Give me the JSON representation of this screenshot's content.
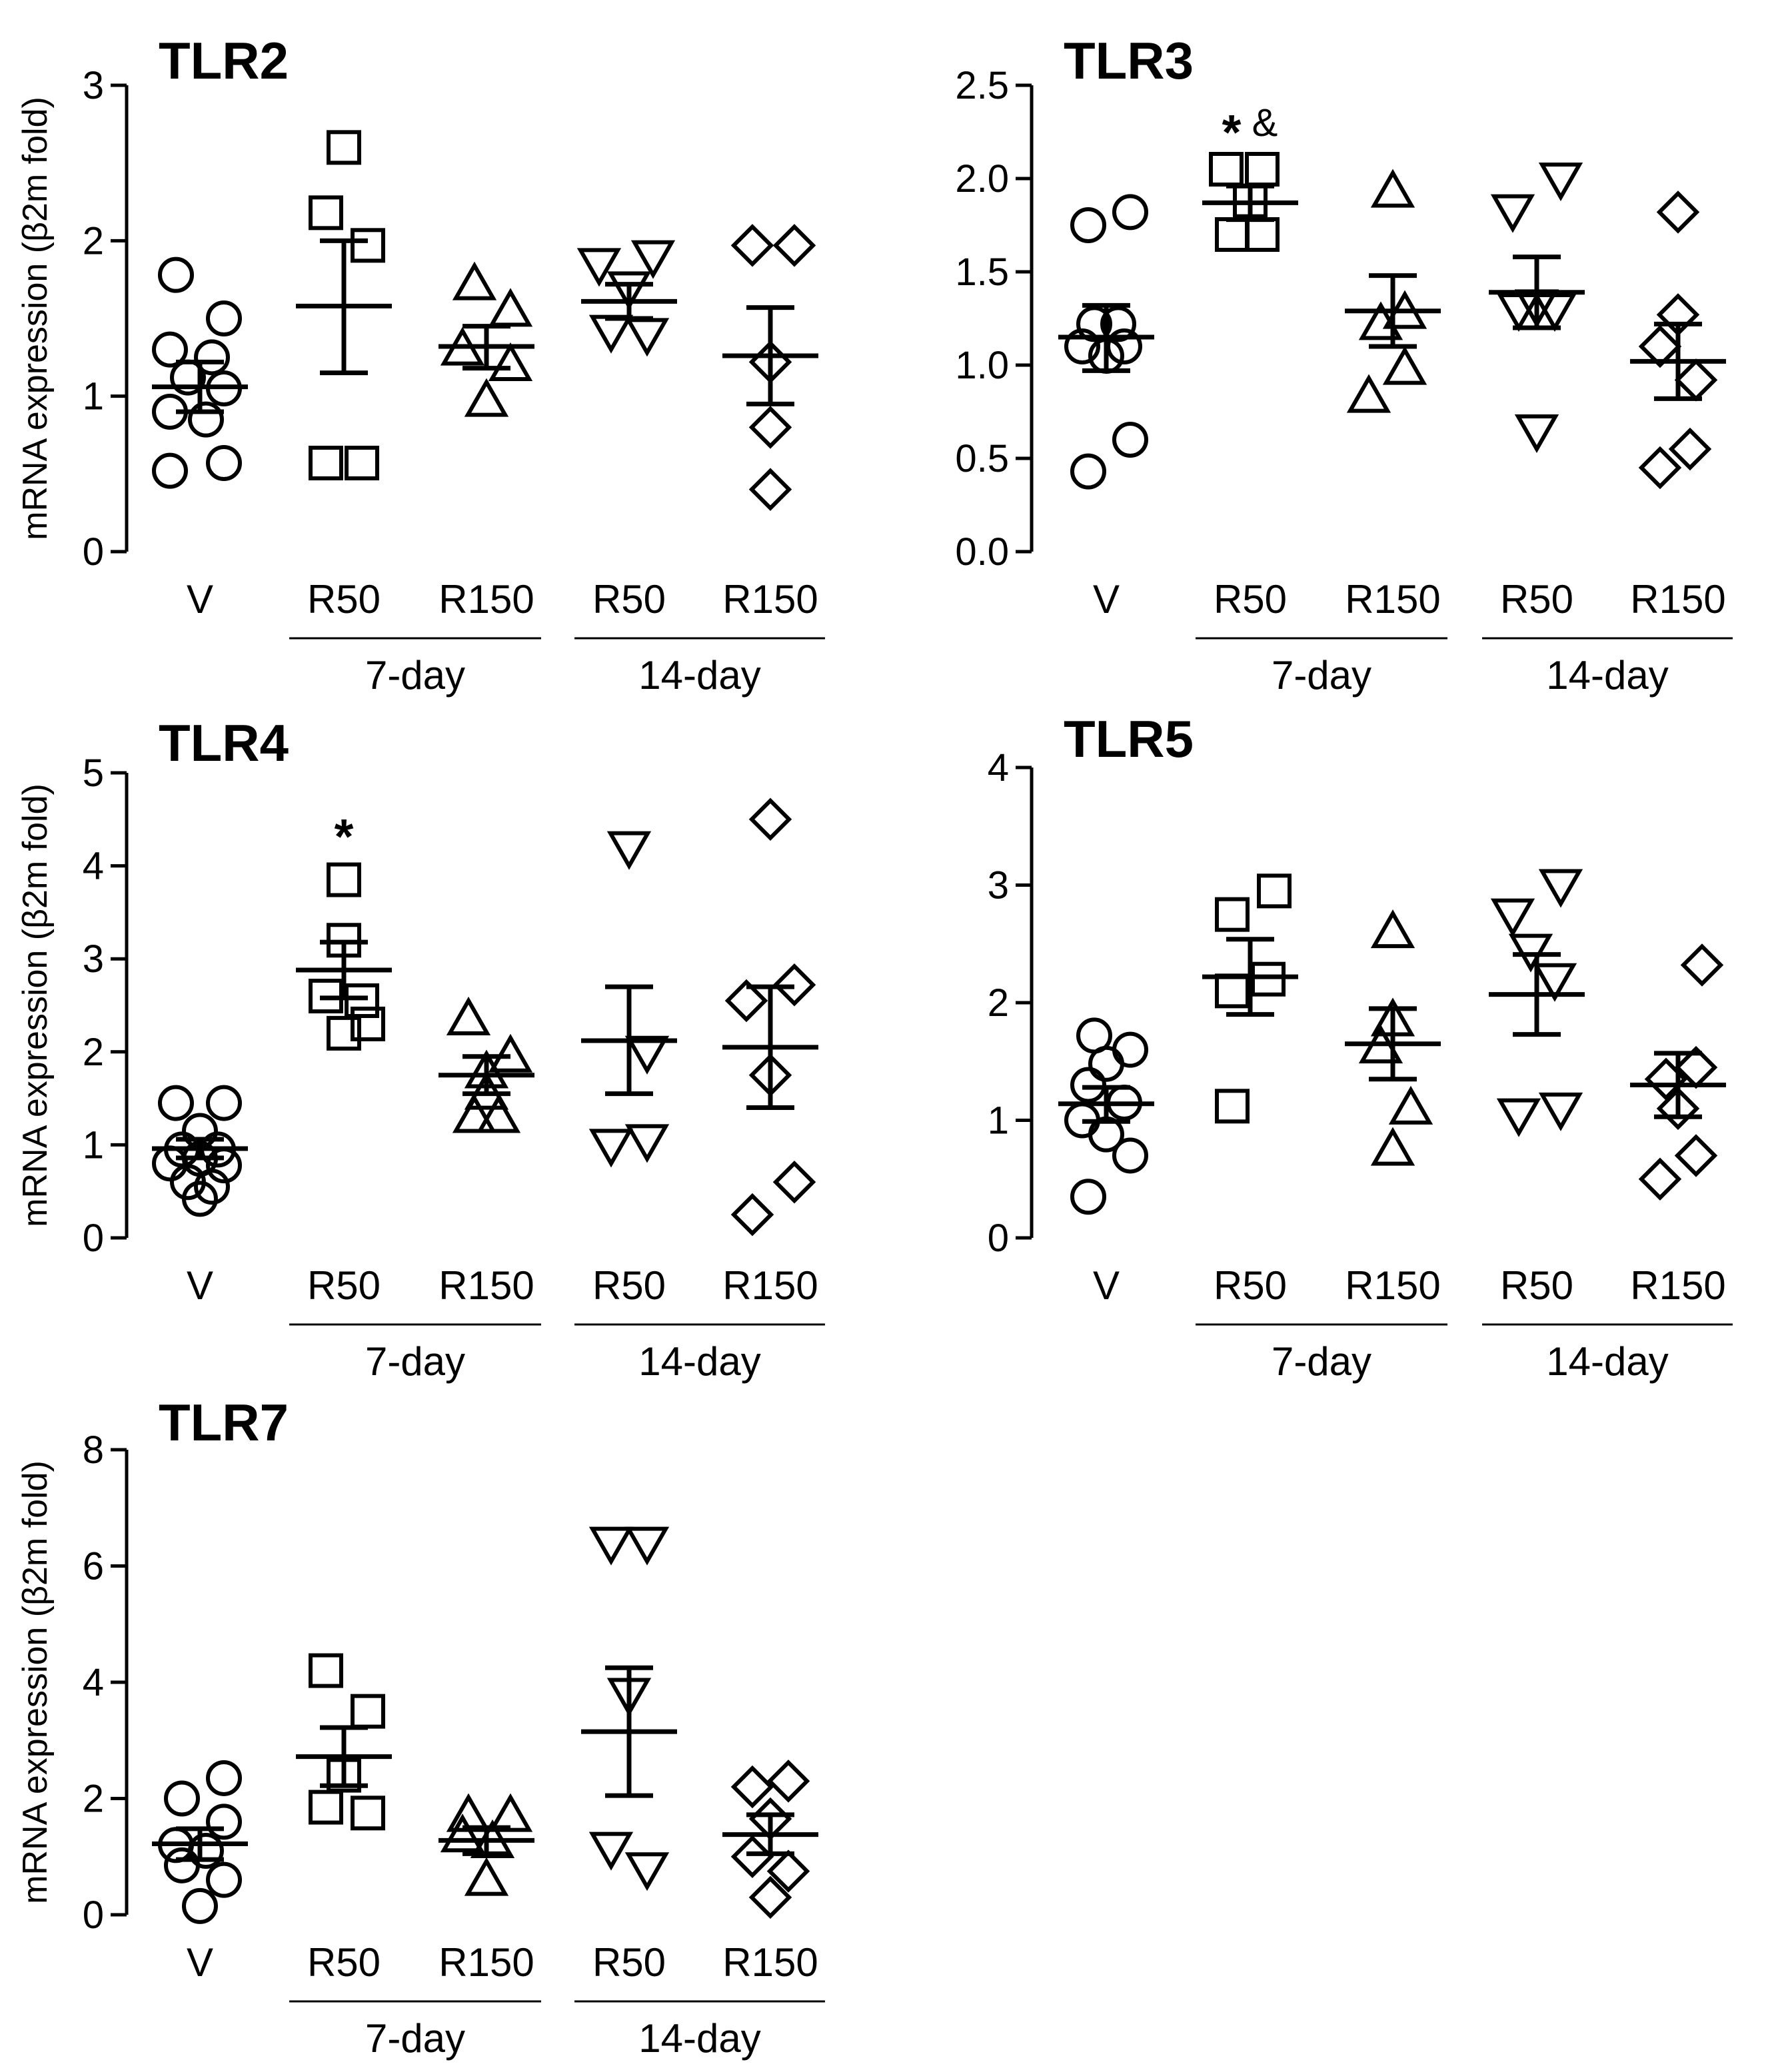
{
  "y_axis_label": "mRNA expression (β2m fold)",
  "chart_data": [
    {
      "type": "scatter",
      "title": "TLR2",
      "ylabel": "mRNA expression (β2m fold)",
      "ylim": [
        0,
        3
      ],
      "yticks": [
        "0",
        "1",
        "2",
        "3"
      ],
      "categories": [
        "V",
        "R50",
        "R150",
        "R50",
        "R150"
      ],
      "groups": [
        {
          "label": "7-day",
          "span": [
            1,
            2
          ]
        },
        {
          "label": "14-day",
          "span": [
            3,
            4
          ]
        }
      ],
      "annotations": [],
      "series": [
        {
          "name": "V",
          "marker": "circle",
          "points": [
            [
              -0.2,
              1.78
            ],
            [
              0.2,
              1.5
            ],
            [
              -0.25,
              1.3
            ],
            [
              0.1,
              1.25
            ],
            [
              -0.1,
              1.12
            ],
            [
              0.2,
              1.05
            ],
            [
              -0.25,
              0.9
            ],
            [
              0.05,
              0.85
            ],
            [
              -0.25,
              0.52
            ],
            [
              0.2,
              0.57
            ]
          ],
          "mean": 1.06,
          "sem_low": 0.9,
          "sem_high": 1.22
        },
        {
          "name": "R50 7-day",
          "marker": "square",
          "points": [
            [
              0.0,
              2.6
            ],
            [
              -0.15,
              2.18
            ],
            [
              0.2,
              1.97
            ],
            [
              -0.15,
              0.57
            ],
            [
              0.15,
              0.57
            ]
          ],
          "mean": 1.58,
          "sem_low": 1.15,
          "sem_high": 2.0
        },
        {
          "name": "R150 7-day",
          "marker": "triangle-up",
          "points": [
            [
              -0.1,
              1.72
            ],
            [
              0.2,
              1.55
            ],
            [
              -0.2,
              1.3
            ],
            [
              0.2,
              1.2
            ],
            [
              0.0,
              0.97
            ]
          ],
          "mean": 1.32,
          "sem_low": 1.18,
          "sem_high": 1.45
        },
        {
          "name": "R50 14-day",
          "marker": "triangle-down",
          "points": [
            [
              -0.25,
              1.85
            ],
            [
              0.2,
              1.9
            ],
            [
              0.0,
              1.7
            ],
            [
              -0.15,
              1.42
            ],
            [
              0.15,
              1.4
            ]
          ],
          "mean": 1.61,
          "sem_low": 1.5,
          "sem_high": 1.72
        },
        {
          "name": "R150 14-day",
          "marker": "diamond",
          "points": [
            [
              -0.15,
              1.97
            ],
            [
              0.2,
              1.97
            ],
            [
              0.0,
              1.22
            ],
            [
              0.0,
              0.8
            ],
            [
              0.0,
              0.4
            ]
          ],
          "mean": 1.26,
          "sem_low": 0.95,
          "sem_high": 1.57
        }
      ]
    },
    {
      "type": "scatter",
      "title": "TLR3",
      "ylabel": "",
      "ylim": [
        0,
        2.5
      ],
      "yticks": [
        "0.0",
        "0.5",
        "1.0",
        "1.5",
        "2.0",
        "2.5"
      ],
      "categories": [
        "V",
        "R50",
        "R150",
        "R50",
        "R150"
      ],
      "groups": [
        {
          "label": "7-day",
          "span": [
            1,
            2
          ]
        },
        {
          "label": "14-day",
          "span": [
            3,
            4
          ]
        }
      ],
      "annotations": [
        {
          "category": 1,
          "text": "*",
          "value": 2.3
        },
        {
          "category": 1,
          "text": "&",
          "value": 2.3
        }
      ],
      "series": [
        {
          "name": "V",
          "marker": "circle",
          "points": [
            [
              0.2,
              1.82
            ],
            [
              -0.15,
              1.75
            ],
            [
              -0.1,
              1.22
            ],
            [
              0.1,
              1.22
            ],
            [
              -0.2,
              1.1
            ],
            [
              0.15,
              1.1
            ],
            [
              0.0,
              1.05
            ],
            [
              0.2,
              0.6
            ],
            [
              -0.15,
              0.43
            ]
          ],
          "mean": 1.15,
          "sem_low": 0.97,
          "sem_high": 1.32
        },
        {
          "name": "R50 7-day",
          "marker": "square",
          "points": [
            [
              -0.2,
              2.05
            ],
            [
              0.1,
              2.05
            ],
            [
              0.0,
              1.88
            ],
            [
              -0.15,
              1.7
            ],
            [
              0.1,
              1.7
            ]
          ],
          "mean": 1.87,
          "sem_low": 1.78,
          "sem_high": 1.96
        },
        {
          "name": "R150 7-day",
          "marker": "triangle-up",
          "points": [
            [
              0.0,
              1.93
            ],
            [
              0.1,
              1.28
            ],
            [
              -0.1,
              1.22
            ],
            [
              0.1,
              0.98
            ],
            [
              -0.2,
              0.83
            ]
          ],
          "mean": 1.29,
          "sem_low": 1.1,
          "sem_high": 1.48
        },
        {
          "name": "R50 14-day",
          "marker": "triangle-down",
          "points": [
            [
              0.2,
              2.0
            ],
            [
              -0.2,
              1.83
            ],
            [
              0.0,
              1.32
            ],
            [
              -0.15,
              1.3
            ],
            [
              0.15,
              1.3
            ],
            [
              0.0,
              0.65
            ]
          ],
          "mean": 1.39,
          "sem_low": 1.2,
          "sem_high": 1.58
        },
        {
          "name": "R150 14-day",
          "marker": "diamond",
          "points": [
            [
              0.0,
              1.82
            ],
            [
              0.0,
              1.27
            ],
            [
              -0.15,
              1.1
            ],
            [
              0.15,
              0.92
            ],
            [
              -0.15,
              0.45
            ],
            [
              0.1,
              0.55
            ]
          ],
          "mean": 1.02,
          "sem_low": 0.82,
          "sem_high": 1.22
        }
      ]
    },
    {
      "type": "scatter",
      "title": "TLR4",
      "ylabel": "mRNA expression (β2m fold)",
      "ylim": [
        0,
        5
      ],
      "yticks": [
        "0",
        "1",
        "2",
        "3",
        "4",
        "5"
      ],
      "categories": [
        "V",
        "R50",
        "R150",
        "R50",
        "R150"
      ],
      "groups": [
        {
          "label": "7-day",
          "span": [
            1,
            2
          ]
        },
        {
          "label": "14-day",
          "span": [
            3,
            4
          ]
        }
      ],
      "annotations": [
        {
          "category": 1,
          "text": "*",
          "value": 4.42
        }
      ],
      "series": [
        {
          "name": "V",
          "marker": "circle",
          "points": [
            [
              -0.2,
              1.45
            ],
            [
              0.2,
              1.45
            ],
            [
              0.0,
              1.15
            ],
            [
              -0.15,
              0.95
            ],
            [
              0.15,
              0.95
            ],
            [
              0.0,
              0.85
            ],
            [
              -0.25,
              0.8
            ],
            [
              0.2,
              0.78
            ],
            [
              -0.1,
              0.6
            ],
            [
              0.1,
              0.55
            ],
            [
              0.0,
              0.42
            ]
          ],
          "mean": 0.96,
          "sem_low": 0.86,
          "sem_high": 1.06
        },
        {
          "name": "R50 7-day",
          "marker": "square",
          "points": [
            [
              0.0,
              3.85
            ],
            [
              0.0,
              3.2
            ],
            [
              -0.15,
              2.6
            ],
            [
              0.15,
              2.55
            ],
            [
              0.2,
              2.3
            ],
            [
              0.0,
              2.2
            ]
          ],
          "mean": 2.88,
          "sem_low": 2.58,
          "sem_high": 3.18
        },
        {
          "name": "R150 7-day",
          "marker": "triangle-up",
          "points": [
            [
              -0.15,
              2.35
            ],
            [
              0.2,
              1.95
            ],
            [
              0.0,
              1.78
            ],
            [
              0.0,
              1.55
            ],
            [
              -0.1,
              1.3
            ],
            [
              0.1,
              1.3
            ]
          ],
          "mean": 1.75,
          "sem_low": 1.55,
          "sem_high": 1.95
        },
        {
          "name": "R50 14-day",
          "marker": "triangle-down",
          "points": [
            [
              0.0,
              4.2
            ],
            [
              0.15,
              2.0
            ],
            [
              -0.15,
              1.0
            ],
            [
              0.15,
              1.05
            ]
          ],
          "mean": 2.12,
          "sem_low": 1.55,
          "sem_high": 2.7
        },
        {
          "name": "R150 14-day",
          "marker": "diamond",
          "points": [
            [
              0.0,
              4.5
            ],
            [
              0.2,
              2.72
            ],
            [
              -0.2,
              2.55
            ],
            [
              0.0,
              1.75
            ],
            [
              0.2,
              0.6
            ],
            [
              -0.15,
              0.25
            ]
          ],
          "mean": 2.05,
          "sem_low": 1.4,
          "sem_high": 2.7
        }
      ]
    },
    {
      "type": "scatter",
      "title": "TLR5",
      "ylabel": "",
      "ylim": [
        0,
        4
      ],
      "yticks": [
        "0",
        "1",
        "2",
        "3",
        "4"
      ],
      "categories": [
        "V",
        "R50",
        "R150",
        "R50",
        "R150"
      ],
      "groups": [
        {
          "label": "7-day",
          "span": [
            1,
            2
          ]
        },
        {
          "label": "14-day",
          "span": [
            3,
            4
          ]
        }
      ],
      "annotations": [],
      "series": [
        {
          "name": "V",
          "marker": "circle",
          "points": [
            [
              -0.1,
              1.72
            ],
            [
              0.2,
              1.6
            ],
            [
              0.0,
              1.48
            ],
            [
              -0.15,
              1.3
            ],
            [
              0.15,
              1.15
            ],
            [
              -0.2,
              1.0
            ],
            [
              0.0,
              0.88
            ],
            [
              0.2,
              0.7
            ],
            [
              -0.15,
              0.35
            ]
          ],
          "mean": 1.14,
          "sem_low": 0.99,
          "sem_high": 1.28
        },
        {
          "name": "R50 7-day",
          "marker": "square",
          "points": [
            [
              0.2,
              2.95
            ],
            [
              -0.15,
              2.75
            ],
            [
              0.15,
              2.2
            ],
            [
              -0.15,
              2.1
            ],
            [
              -0.15,
              1.12
            ]
          ],
          "mean": 2.22,
          "sem_low": 1.9,
          "sem_high": 2.54
        },
        {
          "name": "R150 7-day",
          "marker": "triangle-up",
          "points": [
            [
              0.0,
              2.6
            ],
            [
              0.0,
              1.85
            ],
            [
              -0.1,
              1.62
            ],
            [
              0.15,
              1.1
            ],
            [
              0.0,
              0.75
            ]
          ],
          "mean": 1.65,
          "sem_low": 1.35,
          "sem_high": 1.95
        },
        {
          "name": "R50 14-day",
          "marker": "triangle-down",
          "points": [
            [
              0.2,
              3.0
            ],
            [
              -0.2,
              2.75
            ],
            [
              -0.05,
              2.45
            ],
            [
              0.15,
              2.2
            ],
            [
              -0.15,
              1.05
            ],
            [
              0.2,
              1.1
            ]
          ],
          "mean": 2.07,
          "sem_low": 1.73,
          "sem_high": 2.41
        },
        {
          "name": "R150 14-day",
          "marker": "diamond",
          "points": [
            [
              0.2,
              2.32
            ],
            [
              0.15,
              1.45
            ],
            [
              -0.1,
              1.35
            ],
            [
              0.0,
              1.1
            ],
            [
              0.15,
              0.7
            ],
            [
              -0.15,
              0.5
            ]
          ],
          "mean": 1.3,
          "sem_low": 1.03,
          "sem_high": 1.57
        }
      ]
    },
    {
      "type": "scatter",
      "title": "TLR7",
      "ylabel": "mRNA expression (β2m fold)",
      "ylim": [
        0,
        8
      ],
      "yticks": [
        "0",
        "2",
        "4",
        "6",
        "8"
      ],
      "categories": [
        "V",
        "R50",
        "R150",
        "R50",
        "R150"
      ],
      "groups": [
        {
          "label": "7-day",
          "span": [
            1,
            2
          ]
        },
        {
          "label": "14-day",
          "span": [
            3,
            4
          ]
        }
      ],
      "annotations": [],
      "series": [
        {
          "name": "V",
          "marker": "circle",
          "points": [
            [
              0.2,
              2.35
            ],
            [
              -0.15,
              2.0
            ],
            [
              0.2,
              1.6
            ],
            [
              -0.2,
              1.2
            ],
            [
              0.05,
              1.1
            ],
            [
              -0.15,
              0.85
            ],
            [
              0.2,
              0.6
            ],
            [
              0.0,
              0.15
            ]
          ],
          "mean": 1.22,
          "sem_low": 0.95,
          "sem_high": 1.48
        },
        {
          "name": "R50 7-day",
          "marker": "square",
          "points": [
            [
              -0.15,
              4.2
            ],
            [
              0.2,
              3.5
            ],
            [
              0.0,
              2.4
            ],
            [
              -0.15,
              1.85
            ],
            [
              0.2,
              1.75
            ]
          ],
          "mean": 2.72,
          "sem_low": 2.22,
          "sem_high": 3.22
        },
        {
          "name": "R150 7-day",
          "marker": "triangle-up",
          "points": [
            [
              -0.15,
              1.7
            ],
            [
              0.2,
              1.7
            ],
            [
              -0.2,
              1.35
            ],
            [
              0.05,
              1.25
            ],
            [
              0.0,
              0.6
            ]
          ],
          "mean": 1.28,
          "sem_low": 1.05,
          "sem_high": 1.5
        },
        {
          "name": "R50 14-day",
          "marker": "triangle-down",
          "points": [
            [
              -0.15,
              6.4
            ],
            [
              0.15,
              6.4
            ],
            [
              0.0,
              3.8
            ],
            [
              -0.15,
              1.15
            ],
            [
              0.15,
              0.8
            ]
          ],
          "mean": 3.15,
          "sem_low": 2.05,
          "sem_high": 4.25
        },
        {
          "name": "R150 14-day",
          "marker": "diamond",
          "points": [
            [
              -0.15,
              2.2
            ],
            [
              0.15,
              2.3
            ],
            [
              0.0,
              1.65
            ],
            [
              -0.15,
              1.0
            ],
            [
              0.15,
              0.75
            ],
            [
              0.0,
              0.3
            ]
          ],
          "mean": 1.38,
          "sem_low": 1.05,
          "sem_high": 1.72
        }
      ]
    }
  ]
}
